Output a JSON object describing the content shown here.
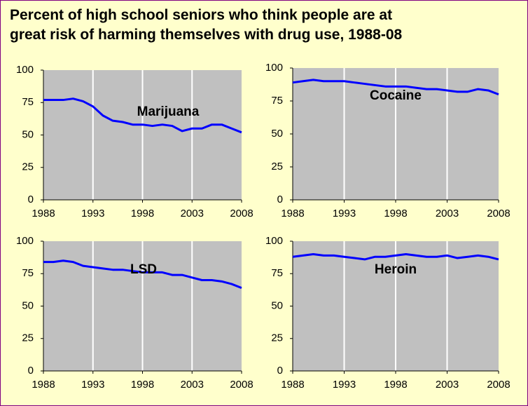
{
  "title": "Percent of high school seniors who think people are at great risk of harming themselves with drug use, 1988-08",
  "chart_data": [
    {
      "type": "line",
      "label": "Marijuana",
      "color": "#0000ff",
      "x": [
        1988,
        1989,
        1990,
        1991,
        1992,
        1993,
        1994,
        1995,
        1996,
        1997,
        1998,
        1999,
        2000,
        2001,
        2002,
        2003,
        2004,
        2005,
        2006,
        2007,
        2008
      ],
      "values": [
        77,
        77,
        77,
        78,
        76,
        72,
        65,
        61,
        60,
        58,
        58,
        57,
        58,
        57,
        53,
        55,
        55,
        58,
        58,
        55,
        52
      ],
      "xlim": [
        1988,
        2008
      ],
      "xticks": [
        1988,
        1993,
        1998,
        2003,
        2008
      ],
      "ylim": [
        0,
        100
      ],
      "yticks": [
        0,
        25,
        50,
        75,
        100
      ],
      "grid": true
    },
    {
      "type": "line",
      "label": "Cocaine",
      "color": "#0000ff",
      "x": [
        1988,
        1989,
        1990,
        1991,
        1992,
        1993,
        1994,
        1995,
        1996,
        1997,
        1998,
        1999,
        2000,
        2001,
        2002,
        2003,
        2004,
        2005,
        2006,
        2007,
        2008
      ],
      "values": [
        89,
        90,
        91,
        90,
        90,
        90,
        89,
        88,
        87,
        86,
        86,
        86,
        85,
        84,
        84,
        83,
        82,
        82,
        84,
        83,
        80
      ],
      "xlim": [
        1988,
        2008
      ],
      "xticks": [
        1988,
        1993,
        1998,
        2003,
        2008
      ],
      "ylim": [
        0,
        100
      ],
      "yticks": [
        0,
        25,
        50,
        75,
        100
      ],
      "grid": true
    },
    {
      "type": "line",
      "label": "LSD",
      "color": "#0000ff",
      "x": [
        1988,
        1989,
        1990,
        1991,
        1992,
        1993,
        1994,
        1995,
        1996,
        1997,
        1998,
        1999,
        2000,
        2001,
        2002,
        2003,
        2004,
        2005,
        2006,
        2007,
        2008
      ],
      "values": [
        84,
        84,
        85,
        84,
        81,
        80,
        79,
        78,
        78,
        77,
        76,
        76,
        76,
        74,
        74,
        72,
        70,
        70,
        69,
        67,
        64
      ],
      "xlim": [
        1988,
        2008
      ],
      "xticks": [
        1988,
        1993,
        1998,
        2003,
        2008
      ],
      "ylim": [
        0,
        100
      ],
      "yticks": [
        0,
        25,
        50,
        75,
        100
      ],
      "grid": true
    },
    {
      "type": "line",
      "label": "Heroin",
      "color": "#0000ff",
      "x": [
        1988,
        1989,
        1990,
        1991,
        1992,
        1993,
        1994,
        1995,
        1996,
        1997,
        1998,
        1999,
        2000,
        2001,
        2002,
        2003,
        2004,
        2005,
        2006,
        2007,
        2008
      ],
      "values": [
        88,
        89,
        90,
        89,
        89,
        88,
        87,
        86,
        88,
        88,
        89,
        90,
        89,
        88,
        88,
        89,
        87,
        88,
        89,
        88,
        86
      ],
      "xlim": [
        1988,
        2008
      ],
      "xticks": [
        1988,
        1993,
        1998,
        2003,
        2008
      ],
      "ylim": [
        0,
        100
      ],
      "yticks": [
        0,
        25,
        50,
        75,
        100
      ],
      "grid": true
    }
  ]
}
